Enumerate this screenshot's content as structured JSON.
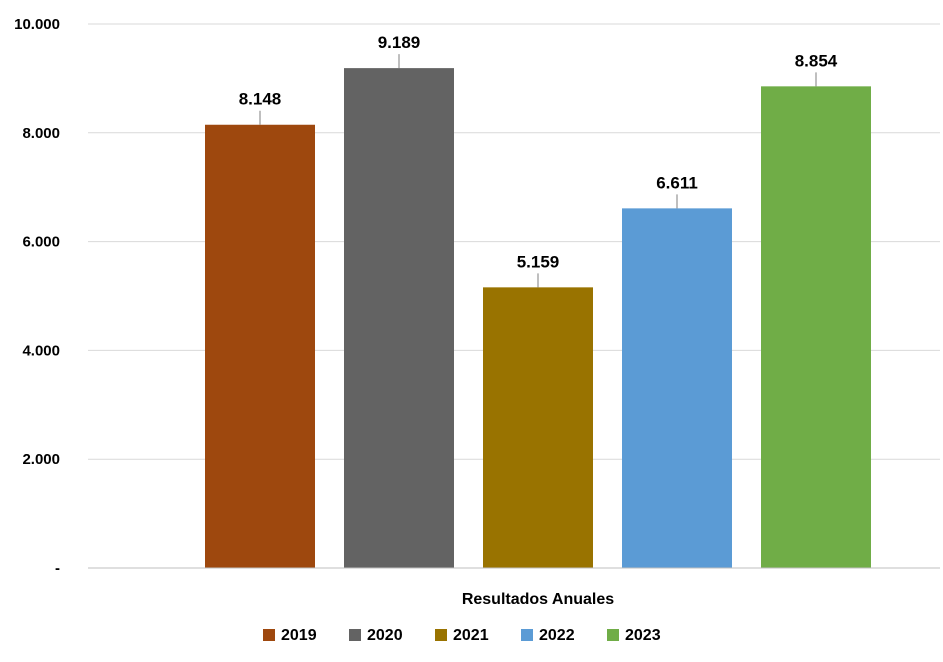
{
  "chart_data": {
    "type": "bar",
    "categories": [
      "Resultados Anuales"
    ],
    "xlabel": "",
    "ylabel": "",
    "ylim": [
      0,
      10000
    ],
    "y_ticks": [
      {
        "value": 0,
        "label": "-"
      },
      {
        "value": 2000,
        "label": "2.000"
      },
      {
        "value": 4000,
        "label": "4.000"
      },
      {
        "value": 6000,
        "label": "6.000"
      },
      {
        "value": 8000,
        "label": "8.000"
      },
      {
        "value": 10000,
        "label": "10.000"
      }
    ],
    "grid": true,
    "legend_position": "bottom",
    "series": [
      {
        "name": "2019",
        "values": [
          8148
        ],
        "label": "8.148",
        "color": "#9E480E"
      },
      {
        "name": "2020",
        "values": [
          9189
        ],
        "label": "9.189",
        "color": "#636363"
      },
      {
        "name": "2021",
        "values": [
          5159
        ],
        "label": "5.159",
        "color": "#997300"
      },
      {
        "name": "2022",
        "values": [
          6611
        ],
        "label": "6.611",
        "color": "#5B9BD5"
      },
      {
        "name": "2023",
        "values": [
          8854
        ],
        "label": "8.854",
        "color": "#70AD47"
      }
    ]
  }
}
